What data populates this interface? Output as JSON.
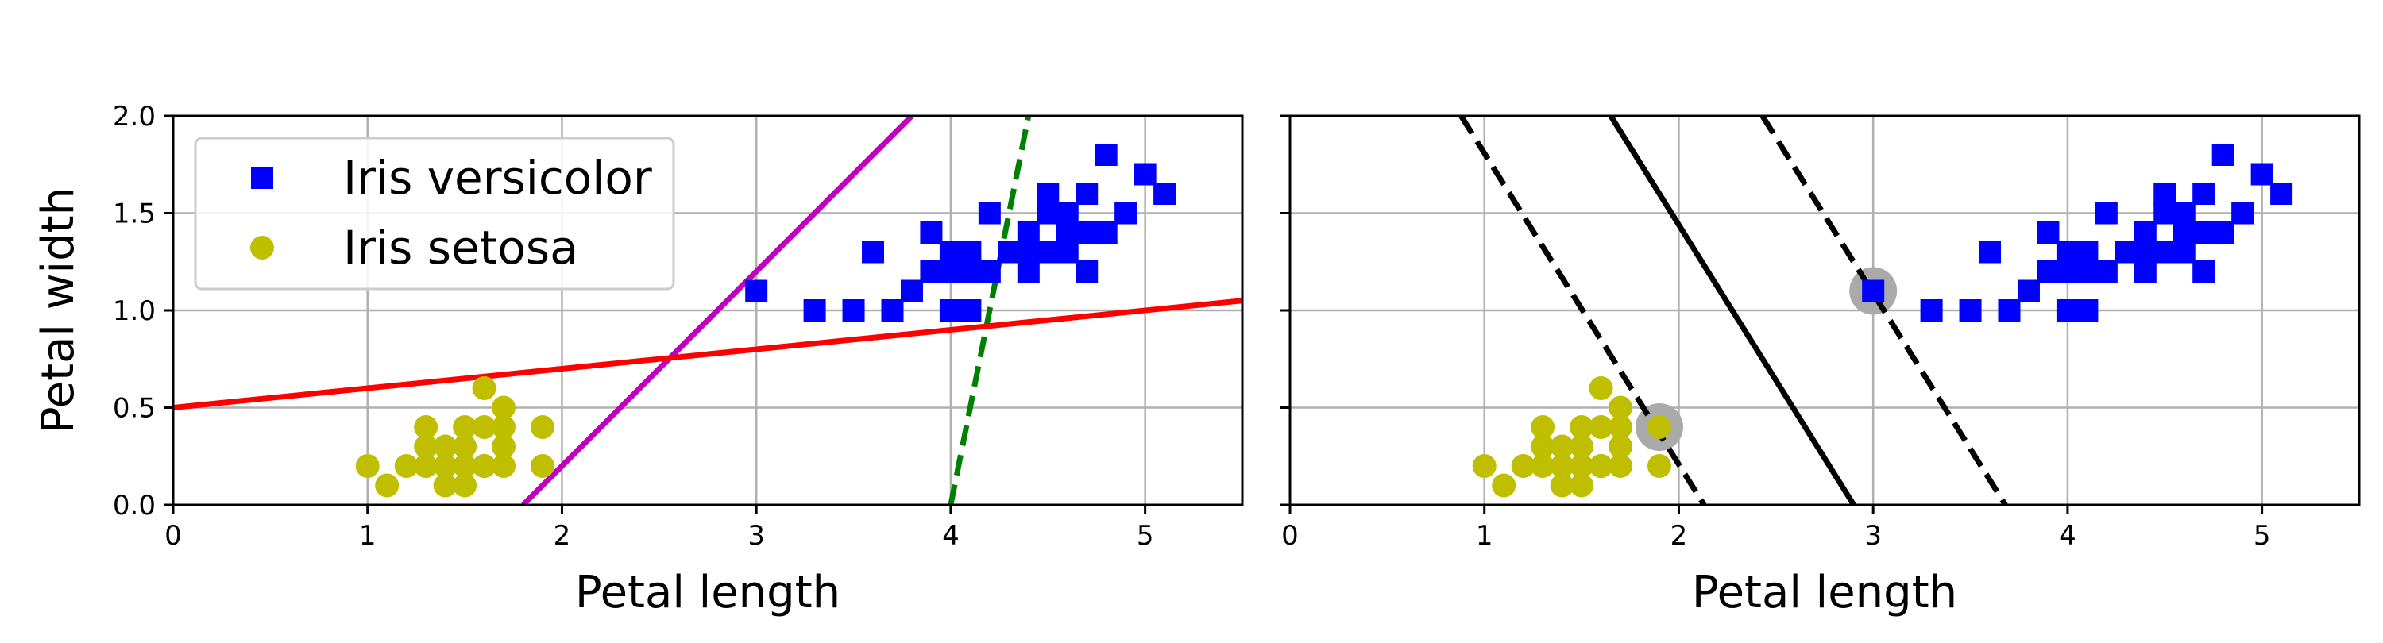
{
  "chart_data": [
    {
      "type": "scatter",
      "panel": "left",
      "title": "",
      "xlabel": "Petal length",
      "ylabel": "Petal width",
      "xlim": [
        0,
        5.5
      ],
      "ylim": [
        0,
        2.0
      ],
      "xticks": [
        "0",
        "1",
        "2",
        "3",
        "4",
        "5"
      ],
      "yticks": [
        "0.0",
        "0.5",
        "1.0",
        "1.5",
        "2.0"
      ],
      "grid": true,
      "legend": {
        "placement": "upper-left",
        "entries": [
          {
            "label": "Iris versicolor",
            "marker": "square",
            "color": "#0000ff"
          },
          {
            "label": "Iris setosa",
            "marker": "circle",
            "color": "#bfbf00"
          }
        ]
      },
      "series": [
        {
          "name": "Iris versicolor",
          "marker": "square",
          "color": "#0000ff",
          "x": [
            3.0,
            3.3,
            3.5,
            3.6,
            3.7,
            3.8,
            3.9,
            3.9,
            4.0,
            4.0,
            4.1,
            4.1,
            4.2,
            4.2,
            4.3,
            4.4,
            4.4,
            4.5,
            4.5,
            4.5,
            4.6,
            4.6,
            4.7,
            4.7,
            4.7,
            4.8,
            4.9,
            5.0,
            5.1,
            4.0,
            4.1,
            4.3,
            4.4,
            4.6,
            4.8
          ],
          "y": [
            1.1,
            1.0,
            1.0,
            1.3,
            1.0,
            1.1,
            1.4,
            1.2,
            1.0,
            1.3,
            1.0,
            1.3,
            1.5,
            1.2,
            1.3,
            1.4,
            1.2,
            1.5,
            1.6,
            1.3,
            1.5,
            1.4,
            1.6,
            1.4,
            1.2,
            1.8,
            1.5,
            1.7,
            1.6,
            1.2,
            1.2,
            1.3,
            1.3,
            1.3,
            1.4
          ]
        },
        {
          "name": "Iris setosa",
          "marker": "circle",
          "color": "#bfbf00",
          "x": [
            1.0,
            1.1,
            1.2,
            1.3,
            1.3,
            1.3,
            1.4,
            1.4,
            1.4,
            1.4,
            1.5,
            1.5,
            1.5,
            1.5,
            1.5,
            1.6,
            1.6,
            1.6,
            1.6,
            1.7,
            1.7,
            1.7,
            1.7,
            1.9,
            1.9
          ],
          "y": [
            0.2,
            0.1,
            0.2,
            0.4,
            0.3,
            0.2,
            0.3,
            0.2,
            0.1,
            0.2,
            0.4,
            0.3,
            0.2,
            0.1,
            0.2,
            0.6,
            0.4,
            0.2,
            0.2,
            0.5,
            0.4,
            0.3,
            0.2,
            0.4,
            0.2
          ]
        }
      ],
      "lines": [
        {
          "style": "dashed",
          "color": "#008000",
          "x": [
            4.0,
            4.4
          ],
          "y": [
            0.0,
            2.0
          ]
        },
        {
          "style": "solid",
          "color": "#bf00bf",
          "x": [
            1.8,
            3.8
          ],
          "y": [
            0.0,
            2.0
          ]
        },
        {
          "style": "solid",
          "color": "#ff0000",
          "x": [
            0.0,
            5.5
          ],
          "y": [
            0.5,
            1.05
          ]
        }
      ]
    },
    {
      "type": "scatter",
      "panel": "right",
      "title": "",
      "xlabel": "Petal length",
      "ylabel": "",
      "xlim": [
        0,
        5.5
      ],
      "ylim": [
        0,
        2.0
      ],
      "xticks": [
        "0",
        "1",
        "2",
        "3",
        "4",
        "5"
      ],
      "yticks": [],
      "grid": true,
      "series": [
        {
          "name": "",
          "marker": "square",
          "color": "#0000ff",
          "x": [
            3.0,
            3.3,
            3.5,
            3.6,
            3.7,
            3.8,
            3.9,
            3.9,
            4.0,
            4.0,
            4.1,
            4.1,
            4.2,
            4.2,
            4.3,
            4.4,
            4.4,
            4.5,
            4.5,
            4.5,
            4.6,
            4.6,
            4.7,
            4.7,
            4.7,
            4.8,
            4.9,
            5.0,
            5.1,
            4.0,
            4.1,
            4.3,
            4.4,
            4.6,
            4.8
          ],
          "y": [
            1.1,
            1.0,
            1.0,
            1.3,
            1.0,
            1.1,
            1.4,
            1.2,
            1.0,
            1.3,
            1.0,
            1.3,
            1.5,
            1.2,
            1.3,
            1.4,
            1.2,
            1.5,
            1.6,
            1.3,
            1.5,
            1.4,
            1.6,
            1.4,
            1.2,
            1.8,
            1.5,
            1.7,
            1.6,
            1.2,
            1.2,
            1.3,
            1.3,
            1.3,
            1.4
          ]
        },
        {
          "name": "",
          "marker": "circle",
          "color": "#bfbf00",
          "x": [
            1.0,
            1.1,
            1.2,
            1.3,
            1.3,
            1.3,
            1.4,
            1.4,
            1.4,
            1.4,
            1.5,
            1.5,
            1.5,
            1.5,
            1.5,
            1.6,
            1.6,
            1.6,
            1.6,
            1.7,
            1.7,
            1.7,
            1.7,
            1.9,
            1.9
          ],
          "y": [
            0.2,
            0.1,
            0.2,
            0.4,
            0.3,
            0.2,
            0.3,
            0.2,
            0.1,
            0.2,
            0.4,
            0.3,
            0.2,
            0.1,
            0.2,
            0.6,
            0.4,
            0.2,
            0.2,
            0.5,
            0.4,
            0.3,
            0.2,
            0.4,
            0.2
          ]
        }
      ],
      "support_vectors": {
        "color": "#aaaaaa",
        "x": [
          1.9,
          3.0
        ],
        "y": [
          0.4,
          1.1
        ]
      },
      "lines": [
        {
          "style": "solid",
          "color": "#000000",
          "x": [
            1.65,
            2.9
          ],
          "y": [
            2.0,
            0.0
          ]
        },
        {
          "style": "dashed",
          "color": "#000000",
          "x": [
            0.88,
            2.13
          ],
          "y": [
            2.0,
            0.0
          ]
        },
        {
          "style": "dashed",
          "color": "#000000",
          "x": [
            2.43,
            3.68
          ],
          "y": [
            2.0,
            0.0
          ]
        }
      ]
    }
  ]
}
